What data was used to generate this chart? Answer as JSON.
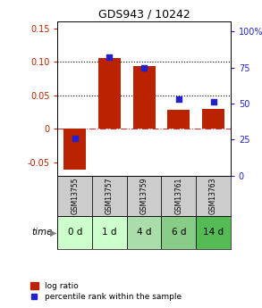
{
  "title": "GDS943 / 10242",
  "samples": [
    "GSM13755",
    "GSM13757",
    "GSM13759",
    "GSM13761",
    "GSM13763"
  ],
  "time_labels": [
    "0 d",
    "1 d",
    "4 d",
    "6 d",
    "14 d"
  ],
  "log_ratio": [
    -0.061,
    0.105,
    0.093,
    0.028,
    0.03
  ],
  "percentile": [
    26,
    82,
    75,
    53,
    51
  ],
  "ylim_left": [
    -0.07,
    0.16
  ],
  "ylim_right": [
    0,
    107
  ],
  "yticks_left": [
    -0.05,
    0.0,
    0.05,
    0.1,
    0.15
  ],
  "ytick_labels_left": [
    "-0.05",
    "0",
    "0.05",
    "0.10",
    "0.15"
  ],
  "yticks_right": [
    0,
    25,
    50,
    75,
    100
  ],
  "ytick_labels_right": [
    "0",
    "25",
    "50",
    "75",
    "100%"
  ],
  "bar_color": "#bb2200",
  "dot_color": "#2222cc",
  "zero_line_color": "#cc3333",
  "grid_color": "#000000",
  "sample_bg_color": "#cccccc",
  "time_bg_colors": [
    "#ccffcc",
    "#ccffcc",
    "#aaddaa",
    "#88cc88",
    "#55bb55"
  ],
  "legend_bar_label": "log ratio",
  "legend_dot_label": "percentile rank within the sample",
  "time_label": "time",
  "fig_width": 2.93,
  "fig_height": 3.45,
  "gridline_values": [
    0.05,
    0.1
  ],
  "dot_size": 20
}
